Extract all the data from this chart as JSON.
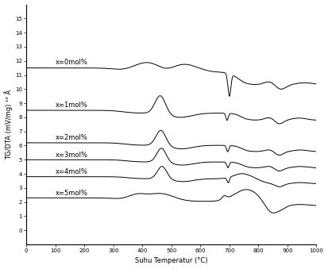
{
  "title": "",
  "xlabel": "Suhu Temperatur (°C)",
  "ylabel": "TG/DTA (mV/mg) ¹⁹ Å",
  "xlim": [
    0,
    1000
  ],
  "ylim": [
    -1,
    16
  ],
  "ytick_vals": [
    0,
    1,
    2,
    3,
    4,
    5,
    6,
    7,
    8,
    9,
    10,
    11,
    12,
    13,
    14,
    15
  ],
  "xtick_vals": [
    0,
    100,
    200,
    300,
    400,
    500,
    600,
    700,
    800,
    900,
    1000
  ],
  "labels": [
    "x=0mol%",
    "x=1mol%",
    "x=2mol%",
    "x=3mol%",
    "x=4mol%",
    "x=5mol%"
  ],
  "offsets": [
    11.5,
    8.5,
    6.2,
    5.0,
    3.8,
    2.3
  ],
  "line_color": "#000000",
  "bg_color": "#ffffff",
  "fontsize_tick": 5,
  "fontsize_label": 6,
  "fontsize_annot": 6
}
